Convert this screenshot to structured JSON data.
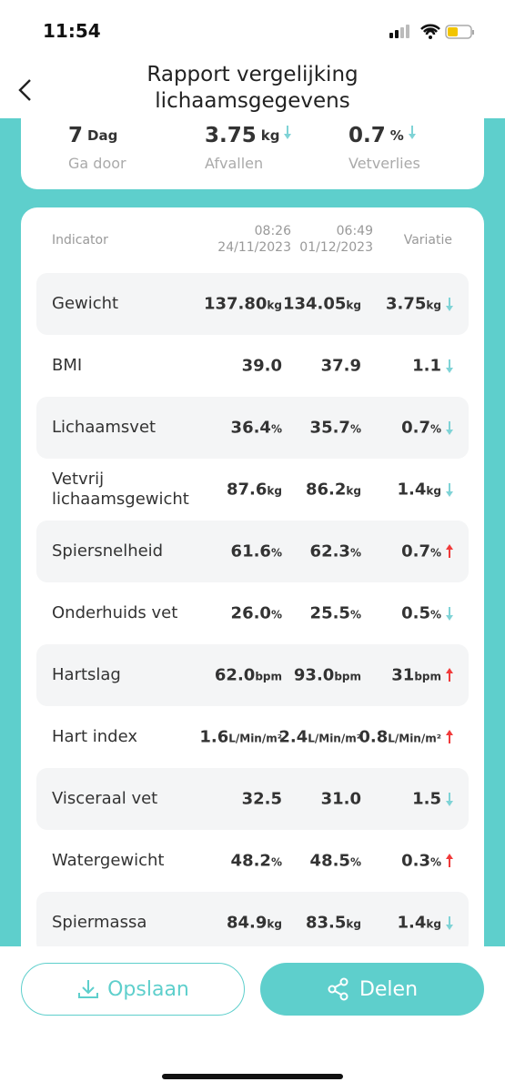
{
  "status_bar": {
    "time": "11:54"
  },
  "header": {
    "title": "Rapport vergelijking lichaamsgegevens"
  },
  "summary": [
    {
      "value": "7",
      "unit": "Dag",
      "label": "Ga door"
    },
    {
      "value": "3.75",
      "unit": "kg",
      "label": "Afvallen",
      "trend": "down"
    },
    {
      "value": "0.7",
      "unit": "%",
      "label": "Vetverlies",
      "trend": "down"
    }
  ],
  "table": {
    "headers": {
      "indicator": "Indicator",
      "time1": "08:26",
      "date1": "24/11/2023",
      "time2": "06:49",
      "date2": "01/12/2023",
      "variation": "Variatie"
    },
    "rows": [
      {
        "name": "Gewicht",
        "v1": "137.80",
        "v2": "134.05",
        "diff": "3.75",
        "unit": "kg",
        "trend": "down"
      },
      {
        "name": "BMI",
        "v1": "39.0",
        "v2": "37.9",
        "diff": "1.1",
        "trend": "down"
      },
      {
        "name": "Lichaamsvet",
        "v1": "36.4",
        "v2": "35.7",
        "diff": "0.7",
        "unit": "%",
        "trend": "down"
      },
      {
        "name": "Vetvrij lichaamsgewicht",
        "v1": "87.6",
        "v2": "86.2",
        "diff": "1.4",
        "unit": "kg",
        "trend": "down"
      },
      {
        "name": "Spiersnelheid",
        "v1": "61.6",
        "v2": "62.3",
        "diff": "0.7",
        "unit": "%",
        "trend": "up"
      },
      {
        "name": "Onderhuids vet",
        "v1": "26.0",
        "v2": "25.5",
        "diff": "0.5",
        "unit": "%",
        "trend": "down"
      },
      {
        "name": "Hartslag",
        "v1": "62.0",
        "v2": "93.0",
        "diff": "31",
        "unit": "bpm",
        "trend": "up"
      },
      {
        "name": "Hart index",
        "v1": "1.6",
        "v2": "2.4",
        "diff": "0.8",
        "unit": "L/Min/m²",
        "trend": "up"
      },
      {
        "name": "Visceraal vet",
        "v1": "32.5",
        "v2": "31.0",
        "diff": "1.5",
        "trend": "down"
      },
      {
        "name": "Watergewicht",
        "v1": "48.2",
        "v2": "48.5",
        "diff": "0.3",
        "unit": "%",
        "trend": "up"
      },
      {
        "name": "Spiermassa",
        "v1": "84.9",
        "v2": "83.5",
        "diff": "1.4",
        "unit": "kg",
        "trend": "down"
      }
    ]
  },
  "buttons": {
    "save": "Opslaan",
    "share": "Delen"
  }
}
